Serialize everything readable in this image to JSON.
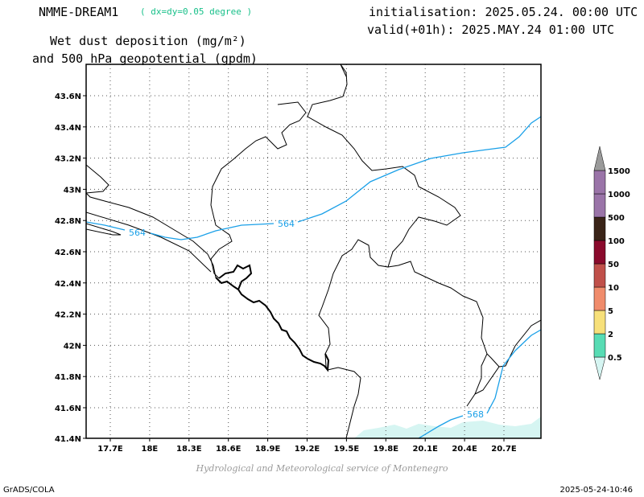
{
  "header": {
    "model": "NMME-DREAM1",
    "resolution": "( dx=dy=0.05 degree )",
    "initialisation": "initialisation: 2025.05.24. 00:00 UTC",
    "valid": "valid(+01h): 2025.MAY.24 01:00 UTC",
    "title_line1": "Wet dust deposition (mg/m²)",
    "title_line2": "and 500 hPa geopotential (gpdm)"
  },
  "map": {
    "x_ticks": [
      "17.7E",
      "18E",
      "18.3E",
      "18.6E",
      "18.9E",
      "19.2E",
      "19.5E",
      "19.8E",
      "20.1E",
      "20.4E",
      "20.7E"
    ],
    "y_ticks": [
      "43.6N",
      "43.4N",
      "43.2N",
      "43N",
      "42.8N",
      "42.6N",
      "42.4N",
      "42.2N",
      "42N",
      "41.8N",
      "41.6N",
      "41.4N"
    ],
    "contour_labels": [
      "564",
      "564",
      "568"
    ],
    "contour_color": "#1aa0e8",
    "grid": true
  },
  "legend": {
    "levels": [
      "0.5",
      "2",
      "5",
      "10",
      "50",
      "100",
      "500",
      "1000",
      "1500"
    ],
    "colors": [
      "#d6f5f2",
      "#58dcb4",
      "#f7e07a",
      "#f08c6c",
      "#c0504a",
      "#8a0a2c",
      "#3a2418",
      "#9a74a8",
      "#9a9a9a"
    ]
  },
  "footer": {
    "credit": "Hydrological and Meteorological service of Montenegro",
    "software": "GrADS/COLA",
    "timestamp": "2025-05-24-10:46"
  }
}
